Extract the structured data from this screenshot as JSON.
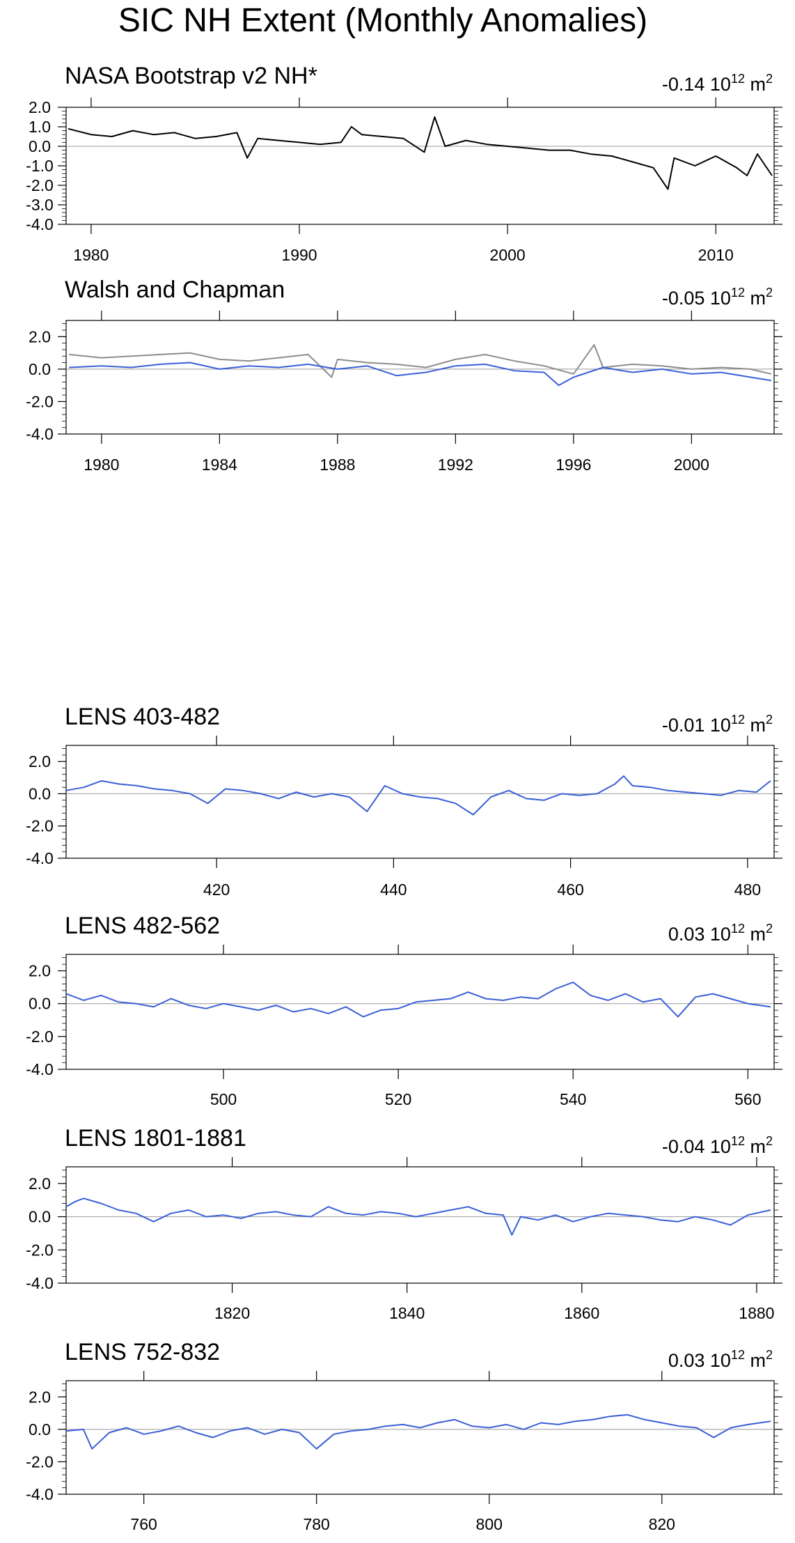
{
  "page": {
    "title": "SIC NH Extent (Monthly Anomalies)"
  },
  "chart_data": [
    {
      "type": "line",
      "title": "NASA Bootstrap v2 NH*",
      "trend_value": "-0.14",
      "trend_unit_base": "10",
      "trend_unit_exp": "12",
      "trend_unit_suffix": "m",
      "trend_unit_suffix_exp": "2",
      "xlim": [
        1978.8,
        2012.8
      ],
      "ylim": [
        -4.0,
        2.0
      ],
      "xticks": [
        1980,
        1990,
        2000,
        2010
      ],
      "xtick_labels": [
        "1980",
        "1990",
        "2000",
        "2010"
      ],
      "yticks": [
        2.0,
        1.0,
        0.0,
        -1.0,
        -2.0,
        -3.0,
        -4.0
      ],
      "ytick_labels": [
        "2.0",
        "1.0",
        "0.0",
        "-1.0",
        "-2.0",
        "-3.0",
        "-4.0"
      ],
      "zero_line": true,
      "series": [
        {
          "color": "#000000",
          "x": [
            1978.9,
            1980.0,
            1981.0,
            1982.0,
            1983.0,
            1984.0,
            1985.0,
            1986.0,
            1987.0,
            1987.5,
            1988.0,
            1989.0,
            1990.0,
            1991.0,
            1992.0,
            1992.5,
            1993.0,
            1994.0,
            1995.0,
            1996.0,
            1996.5,
            1997.0,
            1998.0,
            1999.0,
            2000.0,
            2001.0,
            2002.0,
            2003.0,
            2004.0,
            2005.0,
            2006.0,
            2007.0,
            2007.7,
            2008.0,
            2009.0,
            2010.0,
            2011.0,
            2011.5,
            2012.0,
            2012.7
          ],
          "y": [
            0.9,
            0.6,
            0.5,
            0.8,
            0.6,
            0.7,
            0.4,
            0.5,
            0.7,
            -0.6,
            0.4,
            0.3,
            0.2,
            0.1,
            0.2,
            1.0,
            0.6,
            0.5,
            0.4,
            -0.3,
            1.5,
            0.0,
            0.3,
            0.1,
            0.0,
            -0.1,
            -0.2,
            -0.2,
            -0.4,
            -0.5,
            -0.8,
            -1.1,
            -2.2,
            -0.6,
            -1.0,
            -0.5,
            -1.1,
            -1.5,
            -0.4,
            -1.5
          ]
        }
      ]
    },
    {
      "type": "line",
      "title": "Walsh and Chapman",
      "trend_value": "-0.05",
      "trend_unit_base": "10",
      "trend_unit_exp": "12",
      "trend_unit_suffix": "m",
      "trend_unit_suffix_exp": "2",
      "xlim": [
        1978.8,
        2002.8
      ],
      "ylim": [
        -4.0,
        3.0
      ],
      "xticks": [
        1980,
        1984,
        1988,
        1992,
        1996,
        2000
      ],
      "xtick_labels": [
        "1980",
        "1984",
        "1988",
        "1992",
        "1996",
        "2000"
      ],
      "yticks": [
        2.0,
        0.0,
        -2.0,
        -4.0
      ],
      "ytick_labels": [
        "2.0",
        "0.0",
        "-2.0",
        "-4.0"
      ],
      "zero_line": true,
      "series": [
        {
          "color": "#8c8c8c",
          "x": [
            1978.9,
            1980.0,
            1981.0,
            1982.0,
            1983.0,
            1984.0,
            1985.0,
            1986.0,
            1987.0,
            1987.8,
            1988.0,
            1989.0,
            1990.0,
            1991.0,
            1992.0,
            1993.0,
            1994.0,
            1995.0,
            1996.0,
            1996.7,
            1997.0,
            1998.0,
            1999.0,
            2000.0,
            2001.0,
            2002.0,
            2002.7
          ],
          "y": [
            0.9,
            0.7,
            0.8,
            0.9,
            1.0,
            0.6,
            0.5,
            0.7,
            0.9,
            -0.5,
            0.6,
            0.4,
            0.3,
            0.1,
            0.6,
            0.9,
            0.5,
            0.2,
            -0.3,
            1.5,
            0.1,
            0.3,
            0.2,
            0.0,
            0.1,
            0.0,
            -0.3
          ]
        },
        {
          "color": "#3a5fd6",
          "x": [
            1978.9,
            1980.0,
            1981.0,
            1982.0,
            1983.0,
            1984.0,
            1985.0,
            1986.0,
            1987.0,
            1988.0,
            1989.0,
            1990.0,
            1991.0,
            1992.0,
            1993.0,
            1994.0,
            1995.0,
            1995.5,
            1996.0,
            1997.0,
            1998.0,
            1999.0,
            2000.0,
            2001.0,
            2002.0,
            2002.7
          ],
          "y": [
            0.1,
            0.2,
            0.1,
            0.3,
            0.4,
            0.0,
            0.2,
            0.1,
            0.3,
            0.0,
            0.2,
            -0.4,
            -0.2,
            0.2,
            0.3,
            -0.1,
            -0.2,
            -1.0,
            -0.5,
            0.1,
            -0.2,
            0.0,
            -0.3,
            -0.2,
            -0.5,
            -0.7
          ]
        }
      ]
    },
    {
      "type": "line",
      "title": "LENS 403-482",
      "trend_value": "-0.01",
      "trend_unit_base": "10",
      "trend_unit_exp": "12",
      "trend_unit_suffix": "m",
      "trend_unit_suffix_exp": "2",
      "xlim": [
        403,
        483
      ],
      "ylim": [
        -4.0,
        3.0
      ],
      "xticks": [
        420,
        440,
        460,
        480
      ],
      "xtick_labels": [
        "420",
        "440",
        "460",
        "480"
      ],
      "yticks": [
        2.0,
        0.0,
        -2.0,
        -4.0
      ],
      "ytick_labels": [
        "2.0",
        "0.0",
        "-2.0",
        "-4.0"
      ],
      "zero_line": true,
      "series": [
        {
          "color": "#3a5fd6",
          "x": [
            403,
            405,
            407,
            409,
            411,
            413,
            415,
            417,
            419,
            421,
            423,
            425,
            427,
            429,
            431,
            433,
            435,
            437,
            439,
            441,
            443,
            445,
            447,
            449,
            451,
            453,
            455,
            457,
            459,
            461,
            463,
            465,
            466,
            467,
            469,
            471,
            473,
            475,
            477,
            479,
            481,
            482.6
          ],
          "y": [
            0.2,
            0.4,
            0.8,
            0.6,
            0.5,
            0.3,
            0.2,
            0.0,
            -0.6,
            0.3,
            0.2,
            0.0,
            -0.3,
            0.1,
            -0.2,
            0.0,
            -0.2,
            -1.1,
            0.5,
            0.0,
            -0.2,
            -0.3,
            -0.6,
            -1.3,
            -0.2,
            0.2,
            -0.3,
            -0.4,
            0.0,
            -0.1,
            0.0,
            0.6,
            1.1,
            0.5,
            0.4,
            0.2,
            0.1,
            0.0,
            -0.1,
            0.2,
            0.1,
            0.8
          ]
        }
      ]
    },
    {
      "type": "line",
      "title": "LENS 482-562",
      "trend_value": "0.03",
      "trend_unit_base": "10",
      "trend_unit_exp": "12",
      "trend_unit_suffix": "m",
      "trend_unit_suffix_exp": "2",
      "xlim": [
        482,
        563
      ],
      "ylim": [
        -4.0,
        3.0
      ],
      "xticks": [
        500,
        520,
        540,
        560
      ],
      "xtick_labels": [
        "500",
        "520",
        "540",
        "560"
      ],
      "yticks": [
        2.0,
        0.0,
        -2.0,
        -4.0
      ],
      "ytick_labels": [
        "2.0",
        "0.0",
        "-2.0",
        "-4.0"
      ],
      "zero_line": true,
      "series": [
        {
          "color": "#3a5fd6",
          "x": [
            482,
            484,
            486,
            488,
            490,
            492,
            494,
            496,
            498,
            500,
            502,
            504,
            506,
            508,
            510,
            512,
            514,
            516,
            518,
            520,
            522,
            524,
            526,
            528,
            530,
            532,
            534,
            536,
            538,
            540,
            542,
            544,
            546,
            548,
            550,
            552,
            554,
            556,
            558,
            560,
            562.6
          ],
          "y": [
            0.6,
            0.2,
            0.5,
            0.1,
            0.0,
            -0.2,
            0.3,
            -0.1,
            -0.3,
            0.0,
            -0.2,
            -0.4,
            -0.1,
            -0.5,
            -0.3,
            -0.6,
            -0.2,
            -0.8,
            -0.4,
            -0.3,
            0.1,
            0.2,
            0.3,
            0.7,
            0.3,
            0.2,
            0.4,
            0.3,
            0.9,
            1.3,
            0.5,
            0.2,
            0.6,
            0.1,
            0.3,
            -0.8,
            0.4,
            0.6,
            0.3,
            0.0,
            -0.2
          ]
        }
      ]
    },
    {
      "type": "line",
      "title": "LENS 1801-1881",
      "trend_value": "-0.04",
      "trend_unit_base": "10",
      "trend_unit_exp": "12",
      "trend_unit_suffix": "m",
      "trend_unit_suffix_exp": "2",
      "xlim": [
        1801,
        1882
      ],
      "ylim": [
        -4.0,
        3.0
      ],
      "xticks": [
        1820,
        1840,
        1860,
        1880
      ],
      "xtick_labels": [
        "1820",
        "1840",
        "1860",
        "1880"
      ],
      "yticks": [
        2.0,
        0.0,
        -2.0,
        -4.0
      ],
      "ytick_labels": [
        "2.0",
        "0.0",
        "-2.0",
        "-4.0"
      ],
      "zero_line": true,
      "series": [
        {
          "color": "#3a5fd6",
          "x": [
            1801,
            1802,
            1803,
            1805,
            1807,
            1809,
            1811,
            1813,
            1815,
            1817,
            1819,
            1821,
            1823,
            1825,
            1827,
            1829,
            1831,
            1833,
            1835,
            1837,
            1839,
            1841,
            1843,
            1845,
            1847,
            1849,
            1851,
            1852,
            1853,
            1855,
            1857,
            1859,
            1861,
            1863,
            1865,
            1867,
            1869,
            1871,
            1873,
            1875,
            1877,
            1879,
            1881.6
          ],
          "y": [
            0.6,
            0.9,
            1.1,
            0.8,
            0.4,
            0.2,
            -0.3,
            0.2,
            0.4,
            0.0,
            0.1,
            -0.1,
            0.2,
            0.3,
            0.1,
            0.0,
            0.6,
            0.2,
            0.1,
            0.3,
            0.2,
            0.0,
            0.2,
            0.4,
            0.6,
            0.2,
            0.1,
            -1.1,
            0.0,
            -0.2,
            0.1,
            -0.3,
            0.0,
            0.2,
            0.1,
            0.0,
            -0.2,
            -0.3,
            0.0,
            -0.2,
            -0.5,
            0.1,
            0.4
          ]
        }
      ]
    },
    {
      "type": "line",
      "title": "LENS 752-832",
      "trend_value": "0.03",
      "trend_unit_base": "10",
      "trend_unit_exp": "12",
      "trend_unit_suffix": "m",
      "trend_unit_suffix_exp": "2",
      "xlim": [
        751,
        833
      ],
      "ylim": [
        -4.0,
        3.0
      ],
      "xticks": [
        760,
        780,
        800,
        820
      ],
      "xtick_labels": [
        "760",
        "780",
        "800",
        "820"
      ],
      "yticks": [
        2.0,
        0.0,
        -2.0,
        -4.0
      ],
      "ytick_labels": [
        "2.0",
        "0.0",
        "-2.0",
        "-4.0"
      ],
      "zero_line": true,
      "series": [
        {
          "color": "#3a5fd6",
          "x": [
            751,
            753,
            754,
            756,
            758,
            760,
            762,
            764,
            766,
            768,
            770,
            772,
            774,
            776,
            778,
            780,
            782,
            784,
            786,
            788,
            790,
            792,
            794,
            796,
            798,
            800,
            802,
            804,
            806,
            808,
            810,
            812,
            814,
            816,
            818,
            820,
            822,
            824,
            826,
            828,
            830,
            832.6
          ],
          "y": [
            -0.1,
            0.0,
            -1.2,
            -0.2,
            0.1,
            -0.3,
            -0.1,
            0.2,
            -0.2,
            -0.5,
            -0.1,
            0.1,
            -0.3,
            0.0,
            -0.2,
            -1.2,
            -0.3,
            -0.1,
            0.0,
            0.2,
            0.3,
            0.1,
            0.4,
            0.6,
            0.2,
            0.1,
            0.3,
            0.0,
            0.4,
            0.3,
            0.5,
            0.6,
            0.8,
            0.9,
            0.6,
            0.4,
            0.2,
            0.1,
            -0.5,
            0.1,
            0.3,
            0.5
          ]
        }
      ]
    }
  ]
}
